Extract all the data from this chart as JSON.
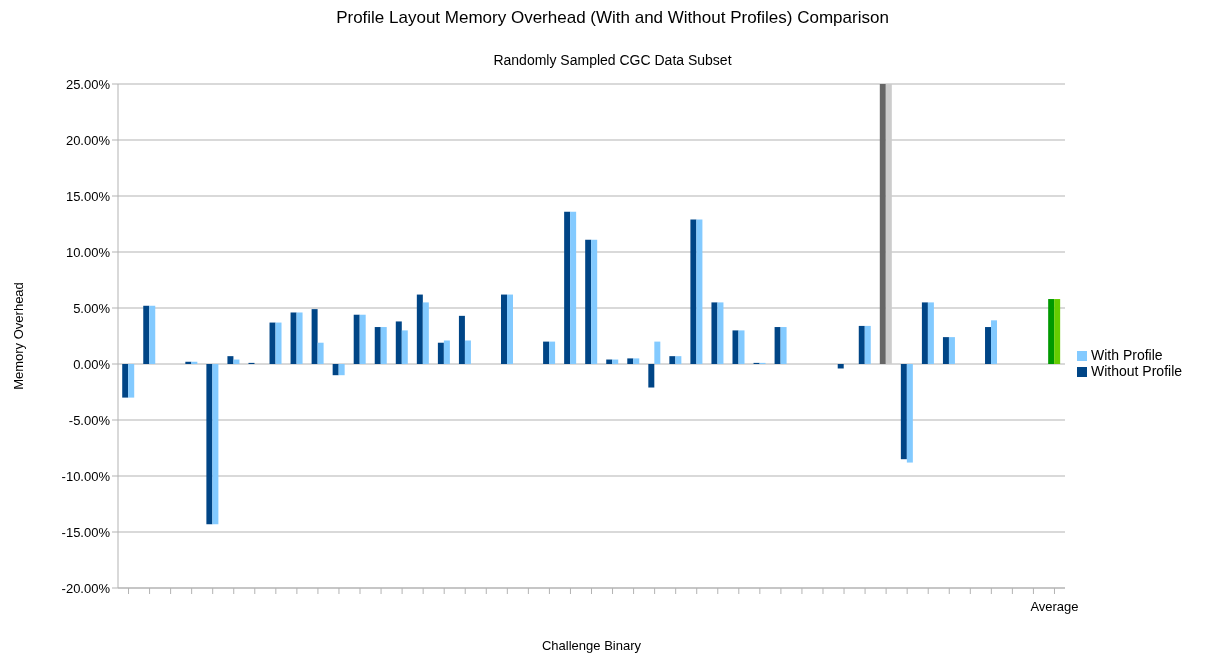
{
  "chart_data": {
    "type": "bar",
    "title": "Profile Layout Memory Overhead (With and Without Profiles) Comparison",
    "subtitle": "Randomly Sampled CGC Data Subset",
    "xlabel": "Challenge Binary",
    "ylabel": "Memory Overhead",
    "categories": [
      null,
      null,
      null,
      null,
      null,
      null,
      null,
      null,
      null,
      null,
      null,
      null,
      null,
      null,
      null,
      null,
      null,
      null,
      null,
      null,
      null,
      null,
      null,
      null,
      null,
      null,
      null,
      null,
      null,
      null,
      null,
      null,
      null,
      null,
      null,
      null,
      null,
      null,
      null,
      null,
      null,
      null,
      null,
      null,
      "Average"
    ],
    "series": [
      {
        "name": "Without Profile",
        "color": "#004586",
        "colors": [
          "#004586",
          "#004586",
          "#004586",
          "#004586",
          "#004586",
          "#004586",
          "#004586",
          "#004586",
          "#004586",
          "#004586",
          "#004586",
          "#004586",
          "#004586",
          "#004586",
          "#004586",
          "#004586",
          "#004586",
          "#004586",
          "#004586",
          "#004586",
          "#004586",
          "#004586",
          "#004586",
          "#004586",
          "#004586",
          "#004586",
          "#004586",
          "#004586",
          "#004586",
          "#004586",
          "#004586",
          "#004586",
          "#004586",
          "#004586",
          "#004586",
          "#004586",
          "#666666",
          "#004586",
          "#004586",
          "#004586",
          "#004586",
          "#004586",
          "#004586",
          "#004586",
          "#009900"
        ],
        "values": [
          -3.0,
          5.2,
          null,
          0.2,
          -14.3,
          0.7,
          0.1,
          3.7,
          4.6,
          4.9,
          -1.0,
          4.4,
          3.3,
          3.8,
          6.2,
          1.9,
          4.3,
          null,
          6.2,
          null,
          2.0,
          13.6,
          11.1,
          0.4,
          0.5,
          -2.1,
          0.7,
          12.9,
          5.5,
          3.0,
          0.1,
          3.3,
          null,
          null,
          -0.4,
          3.4,
          25,
          -8.5,
          5.5,
          2.4,
          null,
          3.3,
          null,
          null,
          5.8
        ]
      },
      {
        "name": "With Profile",
        "color": "#83caff",
        "colors": [
          "#83caff",
          "#83caff",
          "#83caff",
          "#83caff",
          "#83caff",
          "#83caff",
          "#83caff",
          "#83caff",
          "#83caff",
          "#83caff",
          "#83caff",
          "#83caff",
          "#83caff",
          "#83caff",
          "#83caff",
          "#83caff",
          "#83caff",
          "#83caff",
          "#83caff",
          "#83caff",
          "#83caff",
          "#83caff",
          "#83caff",
          "#83caff",
          "#83caff",
          "#83caff",
          "#83caff",
          "#83caff",
          "#83caff",
          "#83caff",
          "#83caff",
          "#83caff",
          "#83caff",
          "#83caff",
          "#83caff",
          "#83caff",
          "#cccccc",
          "#83caff",
          "#83caff",
          "#83caff",
          "#83caff",
          "#83caff",
          "#83caff",
          "#83caff",
          "#66cc00"
        ],
        "values": [
          -3.0,
          5.2,
          null,
          0.2,
          -14.3,
          0.4,
          0,
          3.7,
          4.6,
          1.9,
          -1.0,
          4.4,
          3.3,
          3.0,
          5.5,
          2.1,
          2.1,
          null,
          6.2,
          null,
          2.0,
          13.6,
          11.1,
          0.4,
          0.5,
          2.0,
          0.7,
          12.9,
          5.5,
          3.0,
          0.1,
          3.3,
          null,
          null,
          0,
          3.4,
          25,
          -8.8,
          5.5,
          2.4,
          null,
          3.9,
          null,
          null,
          5.8
        ]
      }
    ],
    "ylim": [
      -20,
      25
    ],
    "yticks": [
      {
        "value": -20,
        "label": "-20.00%"
      },
      {
        "value": -15,
        "label": "-15.00%"
      },
      {
        "value": -10,
        "label": "-10.00%"
      },
      {
        "value": -5,
        "label": "-5.00%"
      },
      {
        "value": 0,
        "label": "0.00%"
      },
      {
        "value": 5,
        "label": "5.00%"
      },
      {
        "value": 10,
        "label": "10.00%"
      },
      {
        "value": 15,
        "label": "15.00%"
      },
      {
        "value": 20,
        "label": "20.00%"
      },
      {
        "value": 25,
        "label": "25.00%"
      }
    ],
    "grid": "y",
    "legend": "right"
  }
}
